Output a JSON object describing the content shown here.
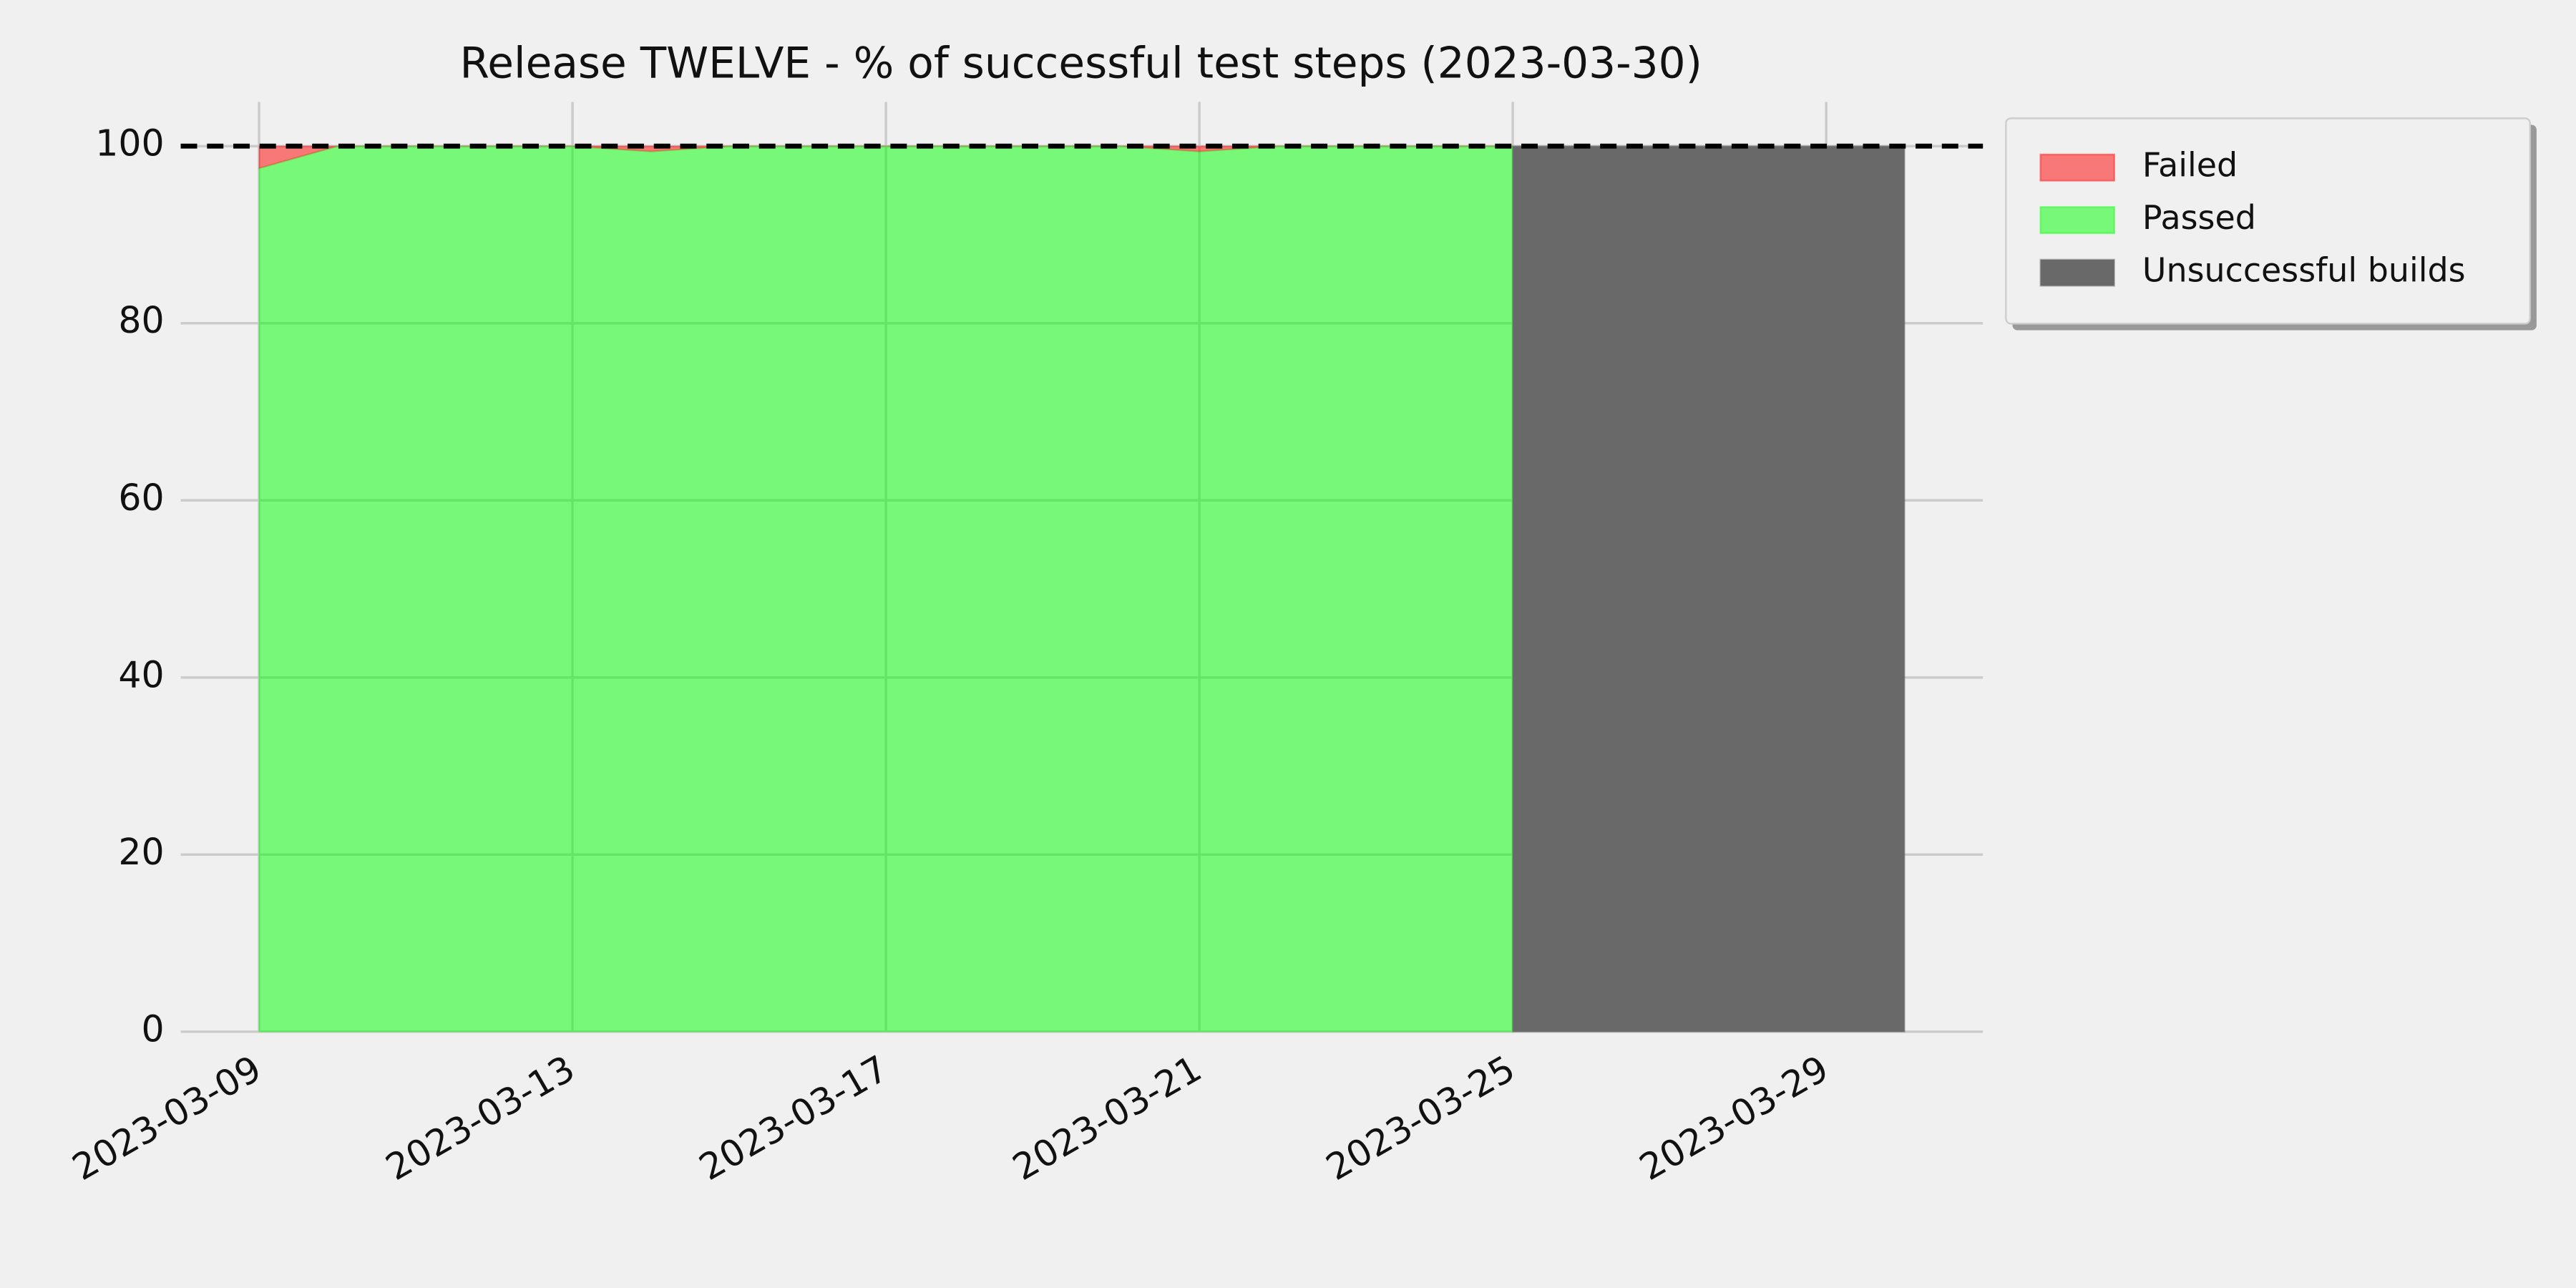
{
  "chart_data": {
    "type": "area",
    "title": "Release TWELVE - % of successful test steps (2023-03-30)",
    "x": [
      "2023-03-09",
      "2023-03-10",
      "2023-03-11",
      "2023-03-12",
      "2023-03-13",
      "2023-03-14",
      "2023-03-15",
      "2023-03-16",
      "2023-03-17",
      "2023-03-18",
      "2023-03-19",
      "2023-03-20",
      "2023-03-21",
      "2023-03-22",
      "2023-03-23",
      "2023-03-24",
      "2023-03-25",
      "2023-03-26",
      "2023-03-27",
      "2023-03-28",
      "2023-03-29",
      "2023-03-30"
    ],
    "series": [
      {
        "name": "Failed",
        "color": "#ff0000",
        "opacity": 0.5,
        "stacked_on": "Passed",
        "values": [
          2.5,
          0,
          0,
          0,
          0,
          0.6,
          0,
          0,
          0,
          0,
          0,
          0,
          0.6,
          0,
          0,
          0,
          0,
          null,
          null,
          null,
          null,
          null
        ]
      },
      {
        "name": "Passed",
        "color": "#00ff00",
        "opacity": 0.5,
        "values": [
          97.5,
          100,
          100,
          100,
          100,
          99.4,
          100,
          100,
          100,
          100,
          100,
          100,
          99.4,
          100,
          100,
          100,
          100,
          null,
          null,
          null,
          null,
          null
        ]
      },
      {
        "name": "Unsuccessful builds",
        "color": "#696969",
        "opacity": 1,
        "values": [
          null,
          null,
          null,
          null,
          null,
          null,
          null,
          null,
          null,
          null,
          null,
          null,
          null,
          null,
          null,
          null,
          100,
          100,
          100,
          100,
          100,
          100
        ]
      }
    ],
    "reference_line": 100,
    "xlim": [
      "2023-03-08",
      "2023-03-31"
    ],
    "xticks": [
      "2023-03-09",
      "2023-03-13",
      "2023-03-17",
      "2023-03-21",
      "2023-03-25",
      "2023-03-29"
    ],
    "ylim": [
      0,
      105
    ],
    "yticks": [
      0,
      20,
      40,
      60,
      80,
      100
    ],
    "grid": true,
    "legend": "outside-upper-right"
  }
}
